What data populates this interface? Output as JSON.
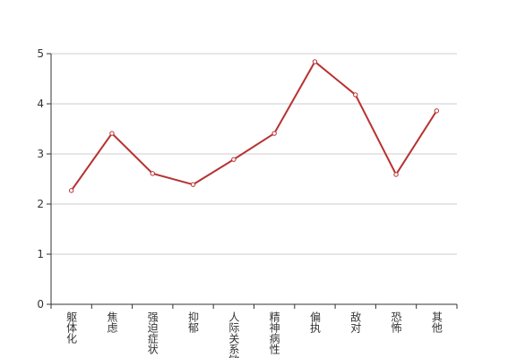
{
  "chart_data": {
    "type": "line",
    "categories": [
      "躯体化",
      "焦虑",
      "强迫症状",
      "抑郁",
      "人际关系敏感",
      "精神病性",
      "偏执",
      "敌对",
      "恐怖",
      "其他"
    ],
    "values": [
      2.27,
      3.41,
      2.61,
      2.39,
      2.89,
      3.41,
      4.84,
      4.18,
      2.59,
      3.86
    ],
    "color": "#b83232",
    "ylim": [
      0,
      5
    ],
    "yticks": [
      0,
      1,
      2,
      3,
      4,
      5
    ],
    "grid": true
  }
}
